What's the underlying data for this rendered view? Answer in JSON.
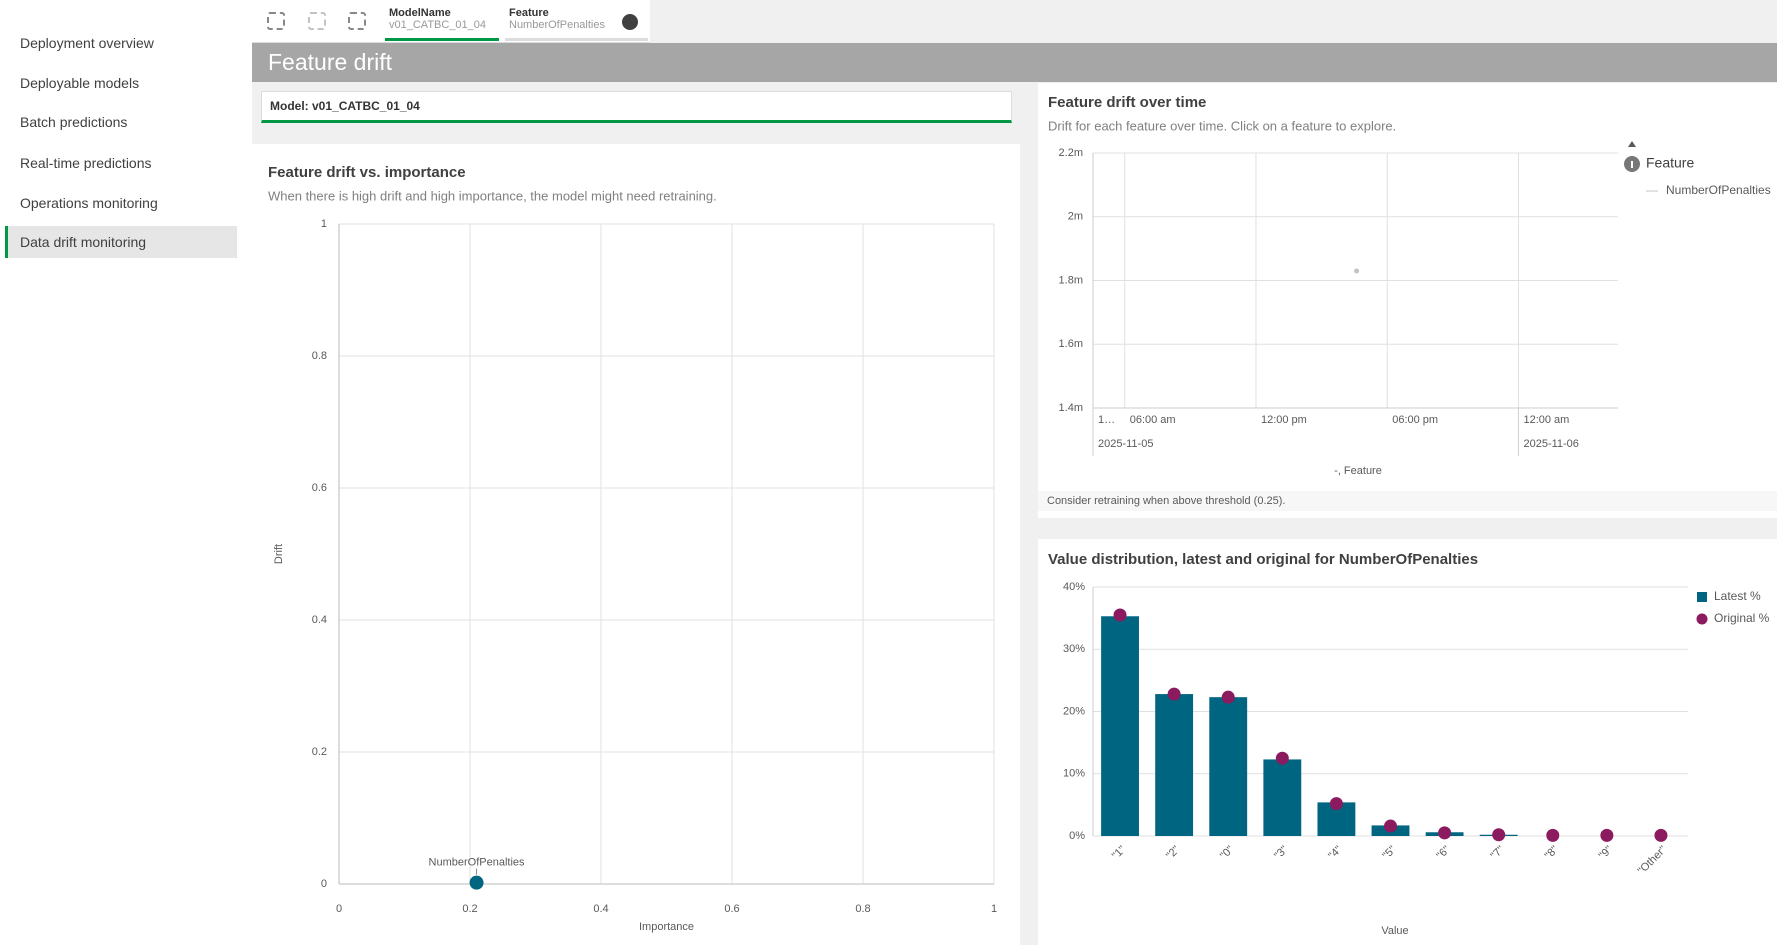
{
  "nav": {
    "items": [
      "Deployment overview",
      "Deployable models",
      "Batch predictions",
      "Real-time predictions",
      "Operations monitoring",
      "Data drift monitoring"
    ]
  },
  "toolbar": {
    "filters": [
      {
        "label": "ModelName",
        "value": "v01_CATBC_01_04"
      },
      {
        "label": "Feature",
        "value": "NumberOfPenalties"
      }
    ]
  },
  "header": {
    "title": "Feature drift"
  },
  "model_filter": "Model: v01_CATBC_01_04",
  "scatter": {
    "type": "scatter",
    "title": "Feature drift vs. importance",
    "subtitle": "When there is high drift and high importance, the model might need retraining.",
    "x_label": "Importance",
    "y_label": "Drift",
    "xlim": [
      0,
      1
    ],
    "ylim": [
      0,
      1
    ],
    "xticks": [
      0,
      0.2,
      0.4,
      0.6,
      0.8,
      1
    ],
    "yticks": [
      0,
      0.2,
      0.4,
      0.6,
      0.8,
      1
    ],
    "grid": true,
    "series": [
      {
        "name": "NumberOfPenalties",
        "color": "#006580",
        "x": [
          0.21
        ],
        "values": [
          0.002
        ]
      }
    ]
  },
  "time": {
    "type": "line",
    "title": "Feature drift over time",
    "subtitle": "Drift for each feature over time. Click on a feature to explore.",
    "x_label": "-, Feature",
    "legend_title": "Feature",
    "note": "Consider retraining when above threshold (0.25).",
    "xlim": [
      "2025-11-05T04:33",
      "2025-11-06T04:33"
    ],
    "xticks": [
      {
        "value": "2025-11-05T04:33",
        "label": "1…"
      },
      {
        "value": "2025-11-05T06:00",
        "label": "06:00 am"
      },
      {
        "value": "2025-11-05T12:00",
        "label": "12:00 pm"
      },
      {
        "value": "2025-11-05T18:00",
        "label": "06:00 pm"
      },
      {
        "value": "2025-11-06T00:00",
        "label": "12:00 am"
      }
    ],
    "date_ticks": [
      {
        "value": "2025-11-05T04:33",
        "label": "2025-11-05"
      },
      {
        "value": "2025-11-06T00:00",
        "label": "2025-11-06"
      }
    ],
    "ylim": [
      0.0014,
      0.0022
    ],
    "yticks": [
      {
        "value": 0.0014,
        "label": "1.4m"
      },
      {
        "value": 0.0016,
        "label": "1.6m"
      },
      {
        "value": 0.0018,
        "label": "1.8m"
      },
      {
        "value": 0.002,
        "label": "2m"
      },
      {
        "value": 0.0022,
        "label": "2.2m"
      }
    ],
    "grid": true,
    "x": [
      "2025-11-05T16:36"
    ],
    "series": [
      {
        "name": "NumberOfPenalties",
        "color": "#c4c4c4",
        "values": [
          0.00183
        ]
      }
    ]
  },
  "bars": {
    "type": "bar",
    "title": "Value distribution, latest and original for NumberOfPenalties",
    "x_label": "Value",
    "categories": [
      "\"1\"",
      "\"2\"",
      "\"0\"",
      "\"3\"",
      "\"4\"",
      "\"5\"",
      "\"6\"",
      "\"7\"",
      "\"8\"",
      "\"9\"",
      "\"Other\""
    ],
    "ylim": [
      0,
      40
    ],
    "yticks": [
      {
        "value": 0,
        "label": "0%"
      },
      {
        "value": 10,
        "label": "10%"
      },
      {
        "value": 20,
        "label": "20%"
      },
      {
        "value": 30,
        "label": "30%"
      },
      {
        "value": 40,
        "label": "40%"
      }
    ],
    "grid": true,
    "series": [
      {
        "name": "Latest %",
        "color": "#006580",
        "marker": "bar",
        "values": [
          35.3,
          22.8,
          22.3,
          12.3,
          5.4,
          1.7,
          0.6,
          0.2,
          0,
          0,
          0
        ]
      },
      {
        "name": "Original %",
        "color": "#8c1a5f",
        "marker": "circle",
        "values": [
          35.5,
          22.8,
          22.3,
          12.5,
          5.2,
          1.6,
          0.5,
          0.2,
          0.1,
          0.1,
          0.1
        ]
      }
    ]
  }
}
